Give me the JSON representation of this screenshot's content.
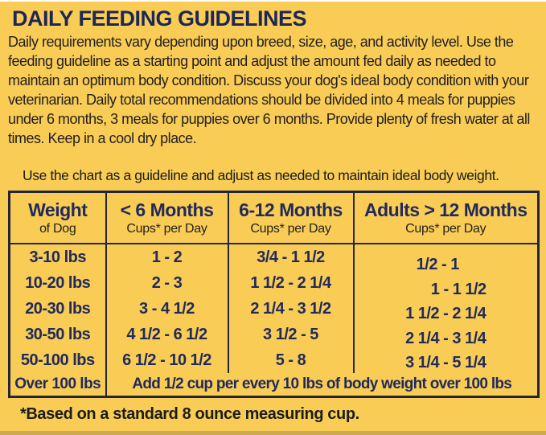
{
  "page": {
    "title": "DAILY FEEDING GUIDELINES",
    "intro": "Daily requirements vary depending upon breed, size, age, and activity level. Use the feeding guideline as a starting point and adjust the amount fed daily as needed to maintain an optimum body condition. Discuss your dog's ideal body condition with your veterinarian. Daily total recommendations should be divided into 4 meals for puppies under 6 months, 3 meals for puppies over 6 months. Provide plenty of fresh water at all times. Keep in a cool dry place.",
    "chart_note": "Use the chart as a guideline and adjust as needed to maintain ideal body weight.",
    "footnote": "*Based on a standard 8 ounce measuring cup."
  },
  "colors": {
    "background": "#F9CC55",
    "heading_navy": "#1D2757",
    "table_navy": "#212A5C",
    "body_text": "#221F20",
    "border": "#23263B"
  },
  "table": {
    "columns": [
      {
        "title": "Weight",
        "subtitle": "of Dog"
      },
      {
        "title": "< 6 Months",
        "subtitle": "Cups* per Day"
      },
      {
        "title": "6-12 Months",
        "subtitle": "Cups* per Day"
      },
      {
        "title": "Adults > 12 Months",
        "subtitle": "Cups* per Day"
      }
    ],
    "rows": [
      {
        "weight": "3-10 lbs",
        "under6": "1 - 2",
        "m6to12": "3/4 - 1 1/2",
        "adults": "1/2 - 1"
      },
      {
        "weight": "10-20 lbs",
        "under6": "2 - 3",
        "m6to12": "1 1/2 - 2 1/4",
        "adults": "1 - 1 1/2"
      },
      {
        "weight": "20-30 lbs",
        "under6": "3 - 4 1/2",
        "m6to12": "2 1/4 - 3 1/2",
        "adults": "1 1/2 - 2 1/4"
      },
      {
        "weight": "30-50 lbs",
        "under6": "4 1/2 - 6 1/2",
        "m6to12": "3 1/2 - 5",
        "adults": "2 1/4 - 3 1/4"
      },
      {
        "weight": "50-100 lbs",
        "under6": "6 1/2 - 10 1/2",
        "m6to12": "5 - 8",
        "adults": "3 1/4 - 5 1/4"
      }
    ],
    "over_row": {
      "weight": "Over 100 lbs",
      "note": "Add 1/2 cup per every 10 lbs of body weight over 100 lbs"
    }
  }
}
